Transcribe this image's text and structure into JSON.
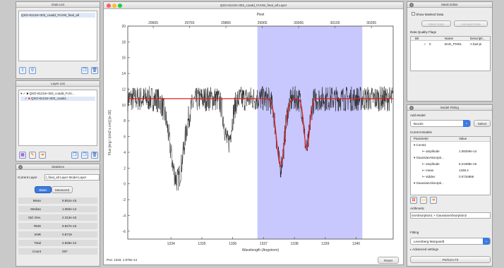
{
  "left": {
    "data_list": {
      "title": "Data List",
      "items": [
        "QSO-81216+303_coadd_FUVM_final_all"
      ]
    },
    "layer_list": {
      "title": "Layer List",
      "items": [
        "QSO-81216+303_coadd_FUV...",
        "QSO-81216+303_coadd..."
      ]
    },
    "statistics": {
      "title": "Statistics",
      "current_layer_label": "Current Layer",
      "current_layer_value": "l_final_all Layer Model Layer",
      "tabs": [
        "Basic",
        "Measured"
      ],
      "rows": [
        {
          "label": "Mean",
          "value": "9.551e-15"
        },
        {
          "label": "Median",
          "value": "1.082e-14"
        },
        {
          "label": "Std. Dev.",
          "value": "2.313e-15"
        },
        {
          "label": "RMS",
          "value": "9.827e-15"
        },
        {
          "label": "SNR",
          "value": "0.8719"
        },
        {
          "label": "Total",
          "value": "2.828e-12"
        },
        {
          "label": "Count",
          "value": "297"
        }
      ]
    }
  },
  "plot": {
    "window_title": "QSO-81216+303_coadd_FUVM_final_all Layer",
    "top_axis_label": "Pixel",
    "status": "Pos: 1333, 1.875e-14",
    "reset_label": "Reset",
    "colors": {
      "highlight": "#c8c8ff",
      "data": "#222222",
      "model": "#e02020"
    }
  },
  "chart_data": {
    "type": "line",
    "title": "",
    "xlabel": "Wavelength (Angstrom)",
    "ylabel": "Flux [erg / (cm2 s cm)] [e-16]",
    "top_xlabel": "Pixel",
    "xlim": [
      1332.6,
      1341.2
    ],
    "ylim": [
      -7,
      20
    ],
    "xticks": [
      1334,
      1335,
      1336,
      1337,
      1338,
      1339,
      1340
    ],
    "yticks": [
      -6,
      -4,
      -2,
      0,
      2,
      4,
      6,
      8,
      10,
      12,
      14,
      16,
      18,
      20
    ],
    "top_ticks": [
      "29665",
      "29765",
      "29865",
      "29965",
      "30065",
      "30165",
      "30265"
    ],
    "roi": [
      1336.8,
      1340.2
    ],
    "continuum": 10.8,
    "series": [
      {
        "type": "noisy-spectrum",
        "segments": [
          [
            1332.6,
            1341.2
          ]
        ],
        "absorption": [
          {
            "center": 1334.2,
            "depth": 10.3,
            "width": 0.22
          },
          {
            "center": 1335.85,
            "depth": 5.6,
            "width": 0.12
          },
          {
            "center": 1337.55,
            "depth": 8.5,
            "width": 0.13
          },
          {
            "center": 1338.4,
            "depth": 6.4,
            "width": 0.09
          }
        ]
      },
      {
        "type": "model",
        "absorption": [
          {
            "center": 1337.55,
            "depth": 8.5,
            "width": 0.13
          },
          {
            "center": 1338.4,
            "depth": 6.4,
            "width": 0.09
          }
        ]
      }
    ]
  },
  "right": {
    "mask": {
      "title": "Mask Editor",
      "show_masked": "Show Masked Data",
      "mask_btn": "Mask Data",
      "unmask_btn": "Unmask Data",
      "flags_label": "Data Quality Flags",
      "cols": [
        "Bit",
        "Name",
        "Descripti..."
      ],
      "row": {
        "bit": "0",
        "name": "BAD_PIXEL",
        "desc": "A bad pi"
      }
    },
    "fitting": {
      "title": "Model Fitting",
      "add_model_label": "Add Model",
      "add_model_value": "Box1D",
      "select_btn": "Select",
      "current_models_label": "Current Models",
      "cols": [
        "Parameter",
        "Value"
      ],
      "tree": [
        {
          "indent": 0,
          "name": "Const1",
          "value": ""
        },
        {
          "indent": 1,
          "name": "amplitude",
          "value": "1.08259e-14"
        },
        {
          "indent": 0,
          "name": "GaussianAbsorpti...",
          "value": ""
        },
        {
          "indent": 1,
          "name": "amplitude",
          "value": "6.21088e-15"
        },
        {
          "indent": 1,
          "name": "mean",
          "value": "1338.4"
        },
        {
          "indent": 1,
          "name": "stddev",
          "value": "0.0734866"
        },
        {
          "indent": 0,
          "name": "GaussianAbsorpti...",
          "value": ""
        }
      ],
      "arithmetic_label": "Arithmetic",
      "arithmetic_value": "ionAbsorption1 + GaussianAbsorption2",
      "fitting_label": "Fitting",
      "fitter_value": "Levenberg-Marquardt",
      "advanced": "Advanced settings",
      "perform_btn": "Perform Fit"
    }
  }
}
